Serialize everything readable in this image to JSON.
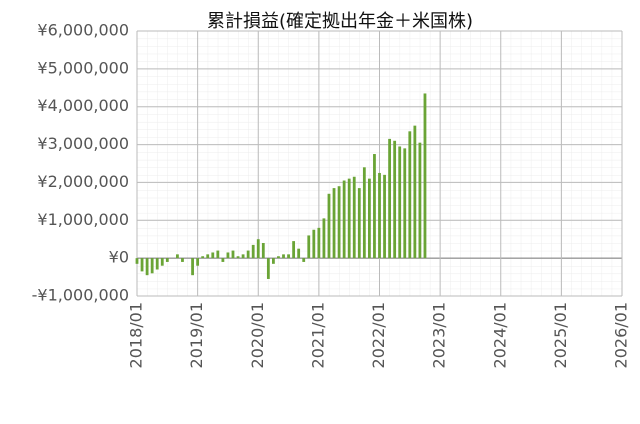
{
  "chart_data": {
    "type": "bar",
    "title": "累計損益(確定拠出年金＋米国株)",
    "color": "#6aa436",
    "grid": true,
    "x": [
      "2018/01",
      "2018/02",
      "2018/03",
      "2018/04",
      "2018/05",
      "2018/06",
      "2018/07",
      "2018/08",
      "2018/09",
      "2018/10",
      "2018/11",
      "2018/12",
      "2019/01",
      "2019/02",
      "2019/03",
      "2019/04",
      "2019/05",
      "2019/06",
      "2019/07",
      "2019/08",
      "2019/09",
      "2019/10",
      "2019/11",
      "2019/12",
      "2020/01",
      "2020/02",
      "2020/03",
      "2020/04",
      "2020/05",
      "2020/06",
      "2020/07",
      "2020/08",
      "2020/09",
      "2020/10",
      "2020/11",
      "2020/12",
      "2021/01",
      "2021/02",
      "2021/03",
      "2021/04",
      "2021/05",
      "2021/06",
      "2021/07",
      "2021/08",
      "2021/09",
      "2021/10",
      "2021/11",
      "2021/12",
      "2022/01",
      "2022/02",
      "2022/03",
      "2022/04",
      "2022/05",
      "2022/06",
      "2022/07",
      "2022/08",
      "2022/09",
      "2022/10"
    ],
    "values": [
      -150000,
      -350000,
      -450000,
      -400000,
      -300000,
      -200000,
      -100000,
      0,
      100000,
      -100000,
      0,
      -450000,
      -200000,
      50000,
      100000,
      150000,
      200000,
      -100000,
      150000,
      200000,
      50000,
      100000,
      200000,
      350000,
      500000,
      400000,
      -550000,
      -150000,
      50000,
      100000,
      100000,
      450000,
      250000,
      -100000,
      600000,
      750000,
      800000,
      1050000,
      1700000,
      1850000,
      1900000,
      2050000,
      2100000,
      2150000,
      1850000,
      2400000,
      2100000,
      2750000,
      2250000,
      2200000,
      3150000,
      3100000,
      2950000,
      2900000,
      3350000,
      3500000,
      3050000,
      4350000
    ],
    "xlim": [
      "2018/01",
      "2026/01"
    ],
    "xticks": [
      "2018/01",
      "2019/01",
      "2020/01",
      "2021/01",
      "2022/01",
      "2023/01",
      "2024/01",
      "2025/01",
      "2026/01"
    ],
    "ylim": [
      -1000000,
      6000000
    ],
    "yticks": [
      {
        "value": -1000000,
        "label": "-¥1,000,000"
      },
      {
        "value": 0,
        "label": "¥0"
      },
      {
        "value": 1000000,
        "label": "¥1,000,000"
      },
      {
        "value": 2000000,
        "label": "¥2,000,000"
      },
      {
        "value": 3000000,
        "label": "¥3,000,000"
      },
      {
        "value": 4000000,
        "label": "¥4,000,000"
      },
      {
        "value": 5000000,
        "label": "¥5,000,000"
      },
      {
        "value": 6000000,
        "label": "¥6,000,000"
      }
    ]
  }
}
